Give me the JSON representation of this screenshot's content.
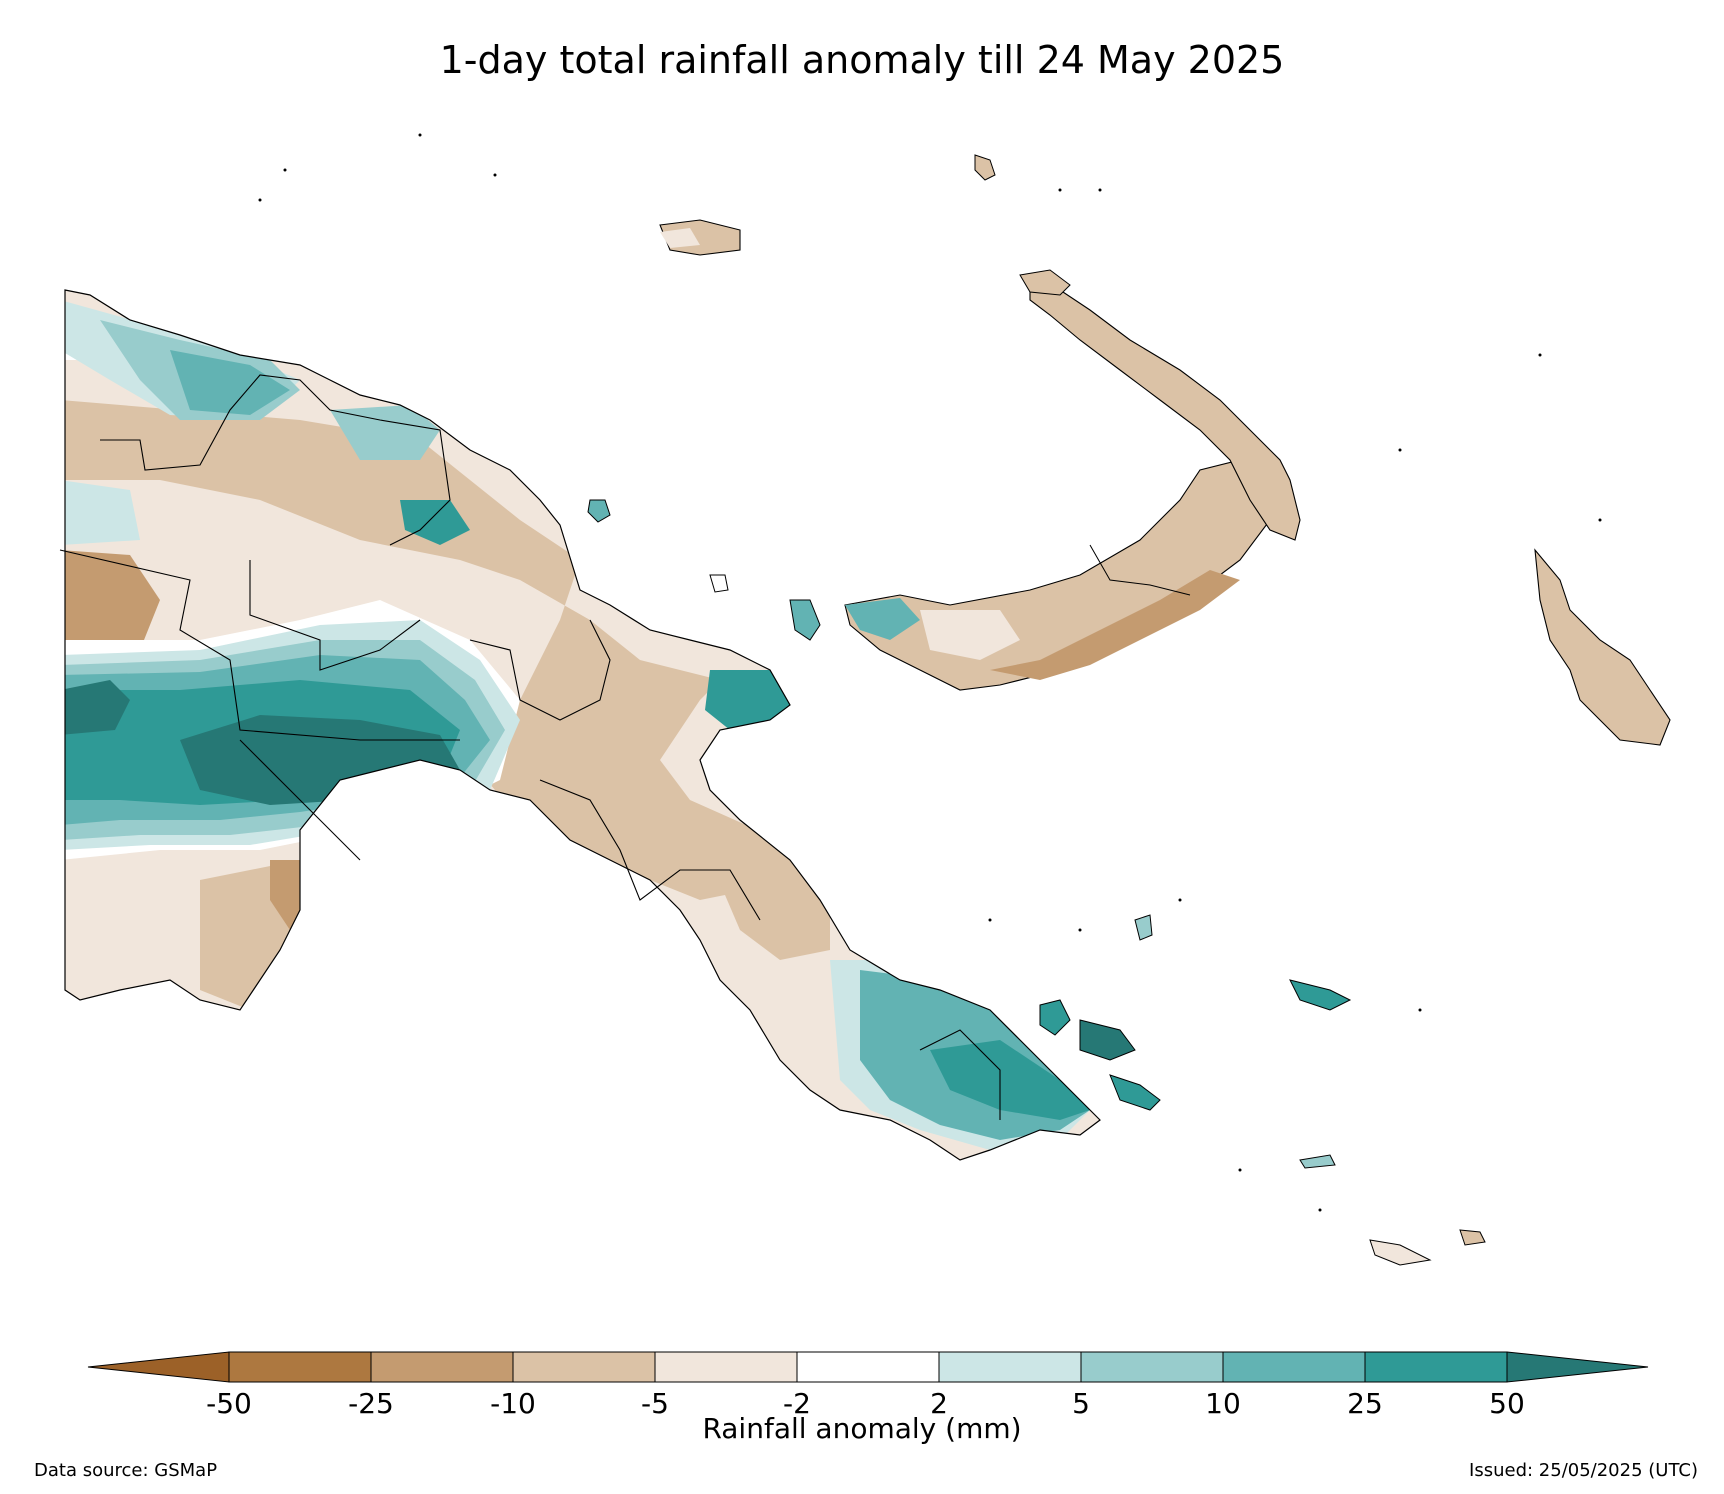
{
  "title": "1-day total rainfall anomaly till 24 May 2025",
  "colorbar": {
    "label": "Rainfall anomaly (mm)",
    "ticks": [
      "-50",
      "-25",
      "-10",
      "-5",
      "-2",
      "2",
      "5",
      "10",
      "25",
      "50"
    ],
    "colors": [
      "#9c6128",
      "#ad7840",
      "#c49b70",
      "#dbc2a6",
      "#f1e6dc",
      "#ffffff",
      "#cce6e6",
      "#98cccc",
      "#62b3b3",
      "#2f9a96",
      "#267875"
    ],
    "extend": "both"
  },
  "footer": {
    "source": "Data source: GSMaP",
    "issued": "Issued: 25/05/2025 (UTC)"
  },
  "palette": {
    "dry_strong": "#ad7840",
    "dry_mid": "#c49b70",
    "dry_light": "#dbc2a6",
    "dry_faint": "#f1e6dc",
    "neutral": "#ffffff",
    "wet_faint": "#cce6e6",
    "wet_light": "#98cccc",
    "wet_mid": "#62b3b3",
    "wet_strong": "#2f9a96",
    "wet_extreme": "#267875"
  }
}
